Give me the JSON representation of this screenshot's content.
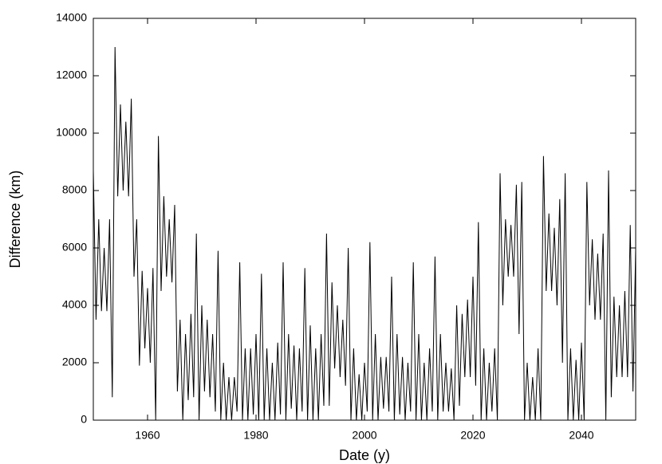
{
  "chart_data": {
    "type": "line",
    "xlabel": "Date (y)",
    "ylabel": "Difference (km)",
    "xlim": [
      1950,
      2050
    ],
    "ylim": [
      0,
      14000
    ],
    "xticks": [
      1960,
      1980,
      2000,
      2020,
      2040
    ],
    "yticks": [
      0,
      2000,
      4000,
      6000,
      8000,
      10000,
      12000,
      14000
    ],
    "color": "#000000",
    "x": [
      1950,
      1950.5,
      1951,
      1951.5,
      1952,
      1952.5,
      1953,
      1953.5,
      1954,
      1954.5,
      1955,
      1955.5,
      1956,
      1956.5,
      1957,
      1957.5,
      1958,
      1958.5,
      1959,
      1959.5,
      1960,
      1960.5,
      1961,
      1961.5,
      1962,
      1962.5,
      1963,
      1963.5,
      1964,
      1964.5,
      1965,
      1965.5,
      1966,
      1966.5,
      1967,
      1967.5,
      1968,
      1968.5,
      1969,
      1969.5,
      1970,
      1970.5,
      1971,
      1971.5,
      1972,
      1972.5,
      1973,
      1973.5,
      1974,
      1974.5,
      1975,
      1975.5,
      1976,
      1976.5,
      1977,
      1977.5,
      1978,
      1978.5,
      1979,
      1979.5,
      1980,
      1980.5,
      1981,
      1981.5,
      1982,
      1982.5,
      1983,
      1983.5,
      1984,
      1984.5,
      1985,
      1985.5,
      1986,
      1986.5,
      1987,
      1987.5,
      1988,
      1988.5,
      1989,
      1989.5,
      1990,
      1990.5,
      1991,
      1991.5,
      1992,
      1992.5,
      1993,
      1993.5,
      1994,
      1994.5,
      1995,
      1995.5,
      1996,
      1996.5,
      1997,
      1997.5,
      1998,
      1998.5,
      1999,
      1999.5,
      2000,
      2000.5,
      2001,
      2001.5,
      2002,
      2002.5,
      2003,
      2003.5,
      2004,
      2004.5,
      2005,
      2005.5,
      2006,
      2006.5,
      2007,
      2007.5,
      2008,
      2008.5,
      2009,
      2009.5,
      2010,
      2010.5,
      2011,
      2011.5,
      2012,
      2012.5,
      2013,
      2013.5,
      2014,
      2014.5,
      2015,
      2015.5,
      2016,
      2016.5,
      2017,
      2017.5,
      2018,
      2018.5,
      2019,
      2019.5,
      2020,
      2020.5,
      2021,
      2021.5,
      2022,
      2022.5,
      2023,
      2023.5,
      2024,
      2024.5,
      2025,
      2025.5,
      2026,
      2026.5,
      2027,
      2027.5,
      2028,
      2028.5,
      2029,
      2029.5,
      2030,
      2030.5,
      2031,
      2031.5,
      2032,
      2032.5,
      2033,
      2033.5,
      2034,
      2034.5,
      2035,
      2035.5,
      2036,
      2036.5,
      2037,
      2037.5,
      2038,
      2038.5,
      2039,
      2039.5,
      2040,
      2040.5,
      2041,
      2041.5,
      2042,
      2042.5,
      2043,
      2043.5,
      2044,
      2044.5,
      2045,
      2045.5,
      2046,
      2046.5,
      2047,
      2047.5,
      2048,
      2048.5,
      2049,
      2049.5,
      2050
    ],
    "values": [
      8700,
      3500,
      7000,
      3800,
      6000,
      3800,
      7000,
      800,
      13000,
      7800,
      11000,
      8000,
      10400,
      7800,
      11200,
      5000,
      7000,
      1900,
      5200,
      2500,
      4600,
      2000,
      5300,
      0,
      9900,
      4500,
      7800,
      5000,
      7000,
      4800,
      7500,
      1000,
      3500,
      0,
      3000,
      700,
      3700,
      800,
      6500,
      0,
      4000,
      1000,
      3500,
      800,
      3000,
      300,
      5900,
      0,
      2000,
      0,
      1500,
      0,
      1500,
      300,
      5500,
      0,
      2500,
      0,
      2500,
      200,
      3000,
      0,
      5100,
      0,
      2500,
      0,
      2000,
      0,
      2700,
      200,
      5500,
      0,
      3000,
      400,
      2600,
      0,
      2500,
      300,
      5300,
      0,
      3300,
      0,
      2500,
      0,
      3000,
      500,
      6500,
      500,
      4800,
      1800,
      4000,
      1500,
      3500,
      1200,
      6000,
      0,
      2500,
      0,
      1600,
      0,
      2000,
      300,
      6200,
      0,
      3000,
      0,
      2200,
      400,
      2200,
      300,
      5000,
      0,
      3000,
      200,
      2200,
      0,
      2000,
      300,
      5500,
      0,
      3000,
      0,
      2000,
      0,
      2500,
      300,
      5700,
      0,
      3000,
      300,
      2000,
      300,
      1800,
      0,
      4000,
      500,
      3700,
      1500,
      4200,
      1500,
      5000,
      1200,
      6900,
      0,
      2500,
      0,
      2000,
      300,
      2500,
      0,
      8600,
      4000,
      7000,
      5000,
      6800,
      5000,
      8200,
      3000,
      8300,
      0,
      2000,
      0,
      1500,
      0,
      2500,
      0,
      9200,
      4500,
      7200,
      4500,
      6700,
      4000,
      7700,
      2000,
      8600,
      0,
      2500,
      0,
      2100,
      0,
      2700,
      0,
      8300,
      4000,
      6300,
      3500,
      5800,
      3500,
      6500,
      0,
      8700,
      800,
      4300,
      1500,
      4000,
      1500,
      4500,
      1500,
      6800,
      1000,
      6000
    ]
  }
}
